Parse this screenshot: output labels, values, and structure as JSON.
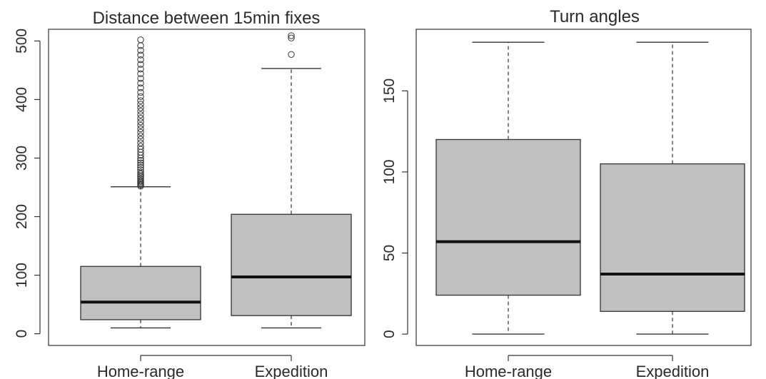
{
  "chart_data": [
    {
      "type": "boxplot",
      "title": "Distance between 15min fixes",
      "xlabel": "",
      "ylabel": "",
      "ylim": [
        -20,
        520
      ],
      "yticks": [
        0,
        100,
        200,
        300,
        400,
        500
      ],
      "grid": false,
      "box_color": "#c0c0c0",
      "categories": [
        "Home-range",
        "Expedition"
      ],
      "boxes": [
        {
          "name": "Home-range",
          "whisker_low": 10,
          "q1": 24,
          "median": 54,
          "q3": 115,
          "whisker_high": 251,
          "outliers": [
            252,
            254,
            256,
            258,
            260,
            262,
            265,
            268,
            270,
            273,
            276,
            280,
            284,
            288,
            292,
            296,
            300,
            305,
            310,
            315,
            320,
            326,
            332,
            338,
            344,
            350,
            356,
            362,
            368,
            374,
            380,
            386,
            392,
            398,
            405,
            412,
            420,
            428,
            436,
            444,
            452,
            460,
            468,
            476,
            484,
            492,
            502
          ]
        },
        {
          "name": "Expedition",
          "whisker_low": 10,
          "q1": 31,
          "median": 97,
          "q3": 204,
          "whisker_high": 453,
          "outliers": [
            477,
            505,
            509
          ]
        }
      ]
    },
    {
      "type": "boxplot",
      "title": "Turn angles",
      "xlabel": "",
      "ylabel": "",
      "ylim": [
        -7,
        188
      ],
      "yticks": [
        0,
        50,
        100,
        150
      ],
      "grid": false,
      "box_color": "#c0c0c0",
      "categories": [
        "Home-range",
        "Expedition"
      ],
      "boxes": [
        {
          "name": "Home-range",
          "whisker_low": 0,
          "q1": 24,
          "median": 57,
          "q3": 120,
          "whisker_high": 180,
          "outliers": []
        },
        {
          "name": "Expedition",
          "whisker_low": 0,
          "q1": 14,
          "median": 37,
          "q3": 105,
          "whisker_high": 180,
          "outliers": []
        }
      ]
    }
  ]
}
